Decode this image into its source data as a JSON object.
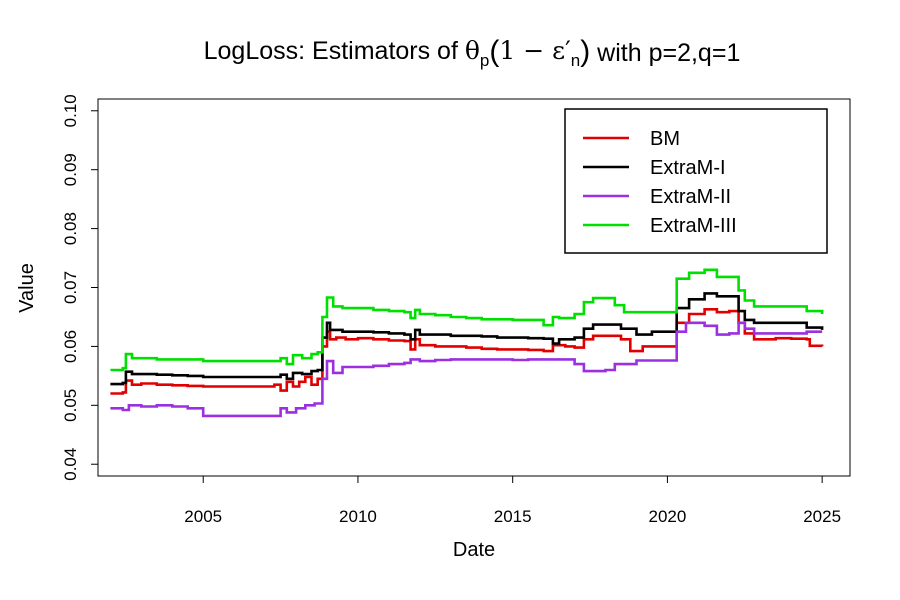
{
  "chart_data": {
    "type": "line",
    "title": {
      "prefix": "LogLoss: Estimators of ",
      "theta": "θ",
      "theta_sub": "p",
      "paren_open": "(",
      "expr_main": "1 − ε′",
      "expr_sub": "n",
      "paren_close": ")",
      "suffix": " with p=2,q=1"
    },
    "xlabel": "Date",
    "ylabel": "Value",
    "xlim": [
      2001.6,
      2025.9
    ],
    "ylim": [
      0.038,
      0.102
    ],
    "x_ticks": [
      2005,
      2010,
      2015,
      2020,
      2025
    ],
    "x_tick_labels": [
      "2005",
      "2010",
      "2015",
      "2020",
      "2025"
    ],
    "y_ticks": [
      0.04,
      0.05,
      0.06,
      0.07,
      0.08,
      0.09,
      0.1
    ],
    "y_tick_labels": [
      "0.04",
      "0.05",
      "0.06",
      "0.07",
      "0.08",
      "0.09",
      "0.10"
    ],
    "legend_position": "top-right",
    "series": [
      {
        "name": "BM",
        "color": "#e00000",
        "points": [
          [
            2002.0,
            0.052
          ],
          [
            2002.4,
            0.0522
          ],
          [
            2002.5,
            0.0542
          ],
          [
            2002.7,
            0.0535
          ],
          [
            2003.0,
            0.0537
          ],
          [
            2003.5,
            0.0535
          ],
          [
            2004.0,
            0.0534
          ],
          [
            2004.5,
            0.0533
          ],
          [
            2005.0,
            0.0532
          ],
          [
            2006.0,
            0.0532
          ],
          [
            2007.0,
            0.0532
          ],
          [
            2007.3,
            0.0535
          ],
          [
            2007.5,
            0.0525
          ],
          [
            2007.7,
            0.054
          ],
          [
            2007.9,
            0.0532
          ],
          [
            2008.1,
            0.054
          ],
          [
            2008.3,
            0.0548
          ],
          [
            2008.5,
            0.0535
          ],
          [
            2008.7,
            0.0545
          ],
          [
            2008.85,
            0.06
          ],
          [
            2009.0,
            0.0625
          ],
          [
            2009.1,
            0.0612
          ],
          [
            2009.3,
            0.0615
          ],
          [
            2009.6,
            0.0612
          ],
          [
            2010.0,
            0.0614
          ],
          [
            2010.5,
            0.0612
          ],
          [
            2011.0,
            0.061
          ],
          [
            2011.5,
            0.0609
          ],
          [
            2011.7,
            0.0595
          ],
          [
            2011.85,
            0.0612
          ],
          [
            2012.0,
            0.0602
          ],
          [
            2012.5,
            0.06
          ],
          [
            2013.0,
            0.06
          ],
          [
            2013.5,
            0.0598
          ],
          [
            2014.0,
            0.0596
          ],
          [
            2014.5,
            0.0595
          ],
          [
            2015.0,
            0.0595
          ],
          [
            2015.5,
            0.0594
          ],
          [
            2016.0,
            0.0592
          ],
          [
            2016.3,
            0.0602
          ],
          [
            2016.7,
            0.06
          ],
          [
            2017.0,
            0.0598
          ],
          [
            2017.3,
            0.0612
          ],
          [
            2017.6,
            0.0618
          ],
          [
            2018.0,
            0.0618
          ],
          [
            2018.5,
            0.0612
          ],
          [
            2018.8,
            0.0592
          ],
          [
            2019.2,
            0.06
          ],
          [
            2020.0,
            0.06
          ],
          [
            2020.3,
            0.064
          ],
          [
            2020.7,
            0.0655
          ],
          [
            2021.2,
            0.0663
          ],
          [
            2021.6,
            0.0658
          ],
          [
            2022.0,
            0.066
          ],
          [
            2022.3,
            0.064
          ],
          [
            2022.5,
            0.0622
          ],
          [
            2022.8,
            0.0612
          ],
          [
            2023.5,
            0.0614
          ],
          [
            2024.0,
            0.0613
          ],
          [
            2024.5,
            0.0612
          ],
          [
            2024.6,
            0.0601
          ],
          [
            2025.0,
            0.06
          ]
        ]
      },
      {
        "name": "ExtraM-I",
        "color": "#000000",
        "points": [
          [
            2002.0,
            0.0536
          ],
          [
            2002.4,
            0.0538
          ],
          [
            2002.5,
            0.0557
          ],
          [
            2002.7,
            0.0553
          ],
          [
            2003.0,
            0.0553
          ],
          [
            2003.5,
            0.0552
          ],
          [
            2004.0,
            0.0551
          ],
          [
            2004.5,
            0.055
          ],
          [
            2005.0,
            0.0548
          ],
          [
            2006.0,
            0.0548
          ],
          [
            2007.0,
            0.0548
          ],
          [
            2007.5,
            0.0552
          ],
          [
            2007.7,
            0.0545
          ],
          [
            2007.9,
            0.0555
          ],
          [
            2008.2,
            0.0553
          ],
          [
            2008.5,
            0.0558
          ],
          [
            2008.7,
            0.056
          ],
          [
            2008.85,
            0.0615
          ],
          [
            2009.0,
            0.064
          ],
          [
            2009.1,
            0.0628
          ],
          [
            2009.5,
            0.0625
          ],
          [
            2010.0,
            0.0625
          ],
          [
            2010.5,
            0.0624
          ],
          [
            2011.0,
            0.0622
          ],
          [
            2011.5,
            0.062
          ],
          [
            2011.7,
            0.0612
          ],
          [
            2011.85,
            0.0628
          ],
          [
            2012.0,
            0.062
          ],
          [
            2012.5,
            0.062
          ],
          [
            2013.0,
            0.0618
          ],
          [
            2013.5,
            0.0618
          ],
          [
            2014.0,
            0.0617
          ],
          [
            2014.5,
            0.0615
          ],
          [
            2015.0,
            0.0615
          ],
          [
            2015.5,
            0.0614
          ],
          [
            2016.0,
            0.0613
          ],
          [
            2016.3,
            0.0605
          ],
          [
            2016.5,
            0.0612
          ],
          [
            2017.0,
            0.0615
          ],
          [
            2017.3,
            0.063
          ],
          [
            2017.6,
            0.0637
          ],
          [
            2018.0,
            0.0637
          ],
          [
            2018.5,
            0.063
          ],
          [
            2019.0,
            0.062
          ],
          [
            2019.5,
            0.0625
          ],
          [
            2020.0,
            0.0625
          ],
          [
            2020.3,
            0.0665
          ],
          [
            2020.7,
            0.068
          ],
          [
            2021.2,
            0.069
          ],
          [
            2021.6,
            0.0685
          ],
          [
            2022.0,
            0.0685
          ],
          [
            2022.3,
            0.066
          ],
          [
            2022.5,
            0.0645
          ],
          [
            2022.8,
            0.064
          ],
          [
            2023.5,
            0.064
          ],
          [
            2024.0,
            0.064
          ],
          [
            2024.5,
            0.0632
          ],
          [
            2025.0,
            0.0628
          ]
        ]
      },
      {
        "name": "ExtraM-II",
        "color": "#9a30e0",
        "points": [
          [
            2002.0,
            0.0495
          ],
          [
            2002.4,
            0.0492
          ],
          [
            2002.6,
            0.05
          ],
          [
            2003.0,
            0.0498
          ],
          [
            2003.5,
            0.05
          ],
          [
            2004.0,
            0.0498
          ],
          [
            2004.5,
            0.0495
          ],
          [
            2005.0,
            0.0482
          ],
          [
            2006.0,
            0.0482
          ],
          [
            2007.0,
            0.0482
          ],
          [
            2007.5,
            0.0495
          ],
          [
            2007.7,
            0.0488
          ],
          [
            2008.0,
            0.0495
          ],
          [
            2008.3,
            0.05
          ],
          [
            2008.6,
            0.0503
          ],
          [
            2008.85,
            0.0545
          ],
          [
            2009.0,
            0.0575
          ],
          [
            2009.2,
            0.0555
          ],
          [
            2009.5,
            0.0565
          ],
          [
            2010.0,
            0.0565
          ],
          [
            2010.5,
            0.0567
          ],
          [
            2011.0,
            0.057
          ],
          [
            2011.5,
            0.0572
          ],
          [
            2011.7,
            0.0578
          ],
          [
            2012.0,
            0.0575
          ],
          [
            2012.5,
            0.0577
          ],
          [
            2013.0,
            0.0578
          ],
          [
            2013.5,
            0.0578
          ],
          [
            2014.0,
            0.0578
          ],
          [
            2014.5,
            0.0578
          ],
          [
            2015.0,
            0.0577
          ],
          [
            2015.5,
            0.0578
          ],
          [
            2016.0,
            0.0578
          ],
          [
            2016.5,
            0.0578
          ],
          [
            2017.0,
            0.057
          ],
          [
            2017.3,
            0.0558
          ],
          [
            2017.6,
            0.0558
          ],
          [
            2018.0,
            0.056
          ],
          [
            2018.3,
            0.057
          ],
          [
            2018.6,
            0.057
          ],
          [
            2019.0,
            0.0576
          ],
          [
            2019.5,
            0.0576
          ],
          [
            2020.0,
            0.0576
          ],
          [
            2020.3,
            0.0625
          ],
          [
            2020.6,
            0.064
          ],
          [
            2021.2,
            0.0635
          ],
          [
            2021.6,
            0.062
          ],
          [
            2022.0,
            0.0622
          ],
          [
            2022.3,
            0.064
          ],
          [
            2022.5,
            0.063
          ],
          [
            2022.8,
            0.0622
          ],
          [
            2023.5,
            0.0622
          ],
          [
            2024.0,
            0.0622
          ],
          [
            2024.5,
            0.0625
          ],
          [
            2025.0,
            0.0625
          ]
        ]
      },
      {
        "name": "ExtraM-III",
        "color": "#00e000",
        "points": [
          [
            2002.0,
            0.056
          ],
          [
            2002.4,
            0.0563
          ],
          [
            2002.5,
            0.0587
          ],
          [
            2002.7,
            0.058
          ],
          [
            2003.0,
            0.058
          ],
          [
            2003.5,
            0.0578
          ],
          [
            2004.0,
            0.0578
          ],
          [
            2004.5,
            0.0578
          ],
          [
            2005.0,
            0.0575
          ],
          [
            2006.0,
            0.0575
          ],
          [
            2007.0,
            0.0575
          ],
          [
            2007.5,
            0.058
          ],
          [
            2007.7,
            0.057
          ],
          [
            2007.9,
            0.0585
          ],
          [
            2008.2,
            0.058
          ],
          [
            2008.5,
            0.0587
          ],
          [
            2008.7,
            0.059
          ],
          [
            2008.85,
            0.065
          ],
          [
            2009.0,
            0.0683
          ],
          [
            2009.2,
            0.0668
          ],
          [
            2009.5,
            0.0665
          ],
          [
            2010.0,
            0.0665
          ],
          [
            2010.5,
            0.0662
          ],
          [
            2011.0,
            0.066
          ],
          [
            2011.5,
            0.0658
          ],
          [
            2011.7,
            0.0648
          ],
          [
            2011.85,
            0.0662
          ],
          [
            2012.0,
            0.0655
          ],
          [
            2012.5,
            0.0653
          ],
          [
            2013.0,
            0.065
          ],
          [
            2013.5,
            0.0648
          ],
          [
            2014.0,
            0.0646
          ],
          [
            2014.5,
            0.0646
          ],
          [
            2015.0,
            0.0645
          ],
          [
            2015.5,
            0.0645
          ],
          [
            2016.0,
            0.0636
          ],
          [
            2016.3,
            0.065
          ],
          [
            2016.5,
            0.0648
          ],
          [
            2017.0,
            0.0655
          ],
          [
            2017.3,
            0.0675
          ],
          [
            2017.6,
            0.0682
          ],
          [
            2018.0,
            0.0682
          ],
          [
            2018.3,
            0.067
          ],
          [
            2018.6,
            0.0658
          ],
          [
            2019.0,
            0.0658
          ],
          [
            2019.5,
            0.0658
          ],
          [
            2020.0,
            0.0658
          ],
          [
            2020.3,
            0.0715
          ],
          [
            2020.7,
            0.0725
          ],
          [
            2021.2,
            0.073
          ],
          [
            2021.6,
            0.0718
          ],
          [
            2022.0,
            0.0718
          ],
          [
            2022.3,
            0.0695
          ],
          [
            2022.5,
            0.0678
          ],
          [
            2022.8,
            0.0668
          ],
          [
            2023.5,
            0.0668
          ],
          [
            2024.0,
            0.0668
          ],
          [
            2024.5,
            0.066
          ],
          [
            2025.0,
            0.0655
          ]
        ]
      }
    ]
  }
}
